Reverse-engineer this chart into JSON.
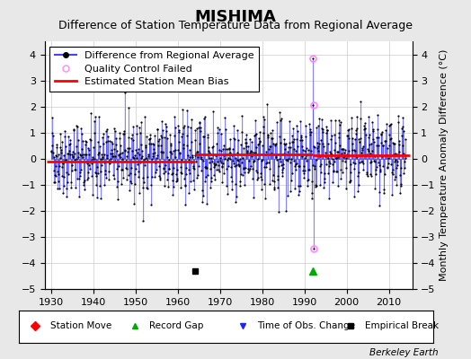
{
  "title": "MISHIMA",
  "subtitle": "Difference of Station Temperature Data from Regional Average",
  "ylabel": "Monthly Temperature Anomaly Difference (°C)",
  "background_color": "#e8e8e8",
  "plot_bg_color": "#ffffff",
  "xlim": [
    1928.5,
    2015.5
  ],
  "ylim": [
    -5,
    4.5
  ],
  "yticks": [
    -5,
    -4,
    -3,
    -2,
    -1,
    0,
    1,
    2,
    3,
    4
  ],
  "xticks": [
    1930,
    1940,
    1950,
    1960,
    1970,
    1980,
    1990,
    2000,
    2010
  ],
  "grid_color": "#cccccc",
  "line_color": "#4444ff",
  "fill_color": "#aaaaff",
  "dot_color": "#000000",
  "bias_line_color": "#ff0000",
  "qc_fail_color": "#ff88ff",
  "seed": 42,
  "empirical_break_x": 1964,
  "empirical_break_y": -4.3,
  "record_gap_x": 1992,
  "record_gap_y": -4.3,
  "qc_fail_points": [
    [
      1992.0,
      3.85
    ],
    [
      1992.1,
      2.05
    ],
    [
      1992.1,
      -3.45
    ]
  ],
  "bias_segments": [
    {
      "x_start": 1929,
      "x_end": 1964,
      "bias": -0.12
    },
    {
      "x_start": 1964,
      "x_end": 1992,
      "bias": 0.18
    },
    {
      "x_start": 1992,
      "x_end": 2015,
      "bias": 0.13
    }
  ],
  "berkeley_earth_text": "Berkeley Earth",
  "title_fontsize": 13,
  "subtitle_fontsize": 9,
  "tick_fontsize": 8,
  "ylabel_fontsize": 8,
  "legend_fontsize": 8
}
